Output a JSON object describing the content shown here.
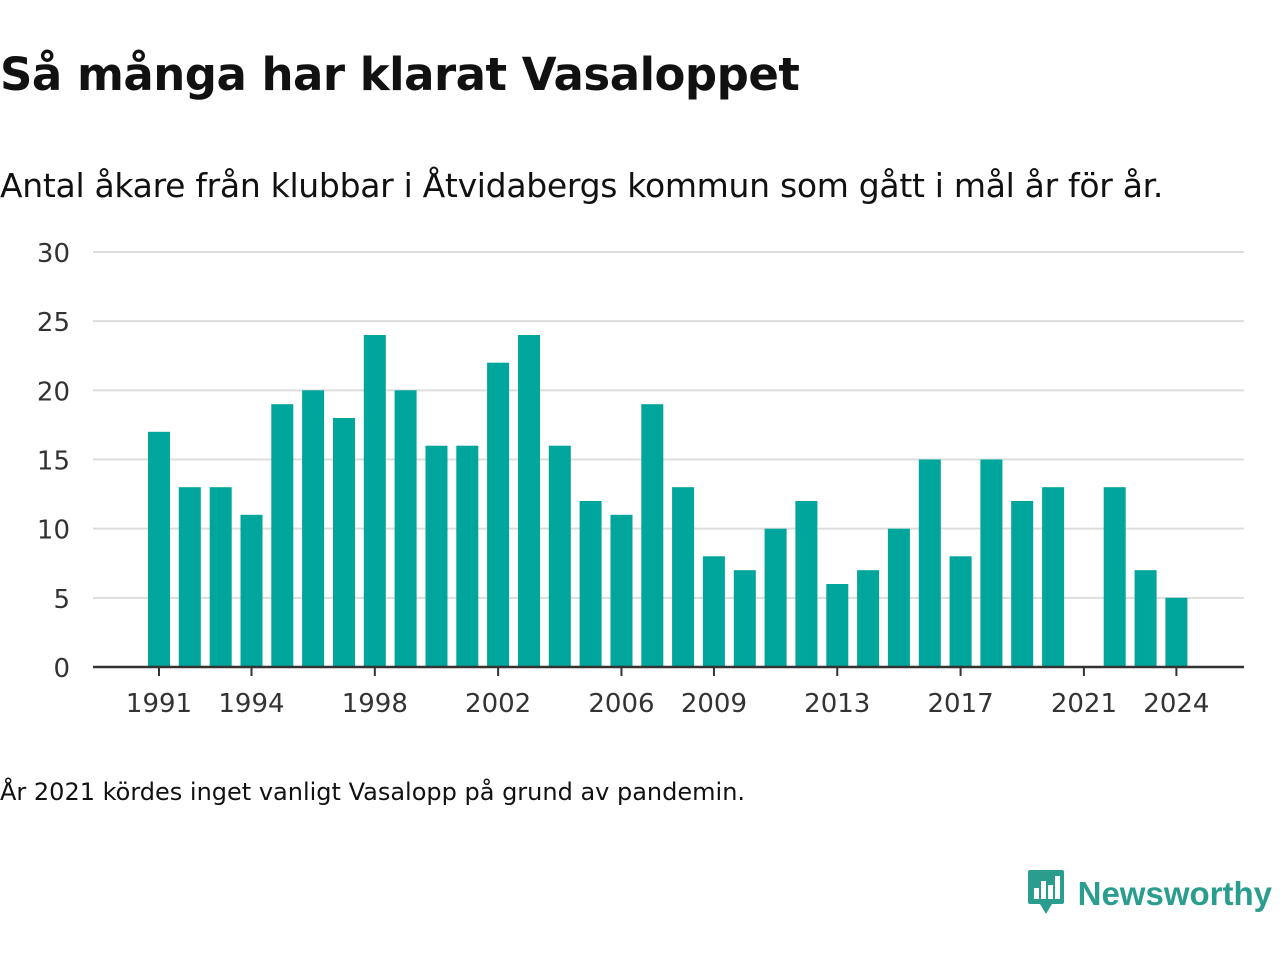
{
  "title": "Så många har klarat Vasaloppet",
  "subtitle": "Antal åkare från klubbar i Åtvidabergs kommun som gått i mål år för år.",
  "footnote": "År 2021 kördes inget vanligt Vasalopp på grund av pandemin.",
  "brand": {
    "name": "Newsworthy",
    "color": "#2a9d8f",
    "logo_icon": "newsworthy-chart-logo-icon"
  },
  "colors": {
    "bar": "#00a59b",
    "grid": "#dddddd",
    "axis": "#333333",
    "tick_text": "#333333"
  },
  "chart_data": {
    "type": "bar",
    "title": "Så många har klarat Vasaloppet",
    "subtitle": "Antal åkare från klubbar i Åtvidabergs kommun som gått i mål år för år.",
    "xlabel": "",
    "ylabel": "",
    "ylim": [
      0,
      30
    ],
    "yticks": [
      0,
      5,
      10,
      15,
      20,
      25,
      30
    ],
    "grid": true,
    "legend": "none",
    "categories": [
      1991,
      1992,
      1993,
      1994,
      1995,
      1996,
      1997,
      1998,
      1999,
      2000,
      2001,
      2002,
      2003,
      2004,
      2005,
      2006,
      2007,
      2008,
      2009,
      2010,
      2011,
      2012,
      2013,
      2014,
      2015,
      2016,
      2017,
      2018,
      2019,
      2020,
      2021,
      2022,
      2023,
      2024
    ],
    "values": [
      17,
      13,
      13,
      11,
      19,
      20,
      18,
      24,
      20,
      16,
      16,
      22,
      24,
      16,
      12,
      11,
      19,
      13,
      8,
      7,
      10,
      12,
      6,
      7,
      10,
      15,
      8,
      15,
      12,
      13,
      0,
      13,
      7,
      5
    ],
    "xtick_labels": [
      "1991",
      "1994",
      "1998",
      "2002",
      "2006",
      "2009",
      "2013",
      "2017",
      "2021",
      "2024"
    ]
  }
}
